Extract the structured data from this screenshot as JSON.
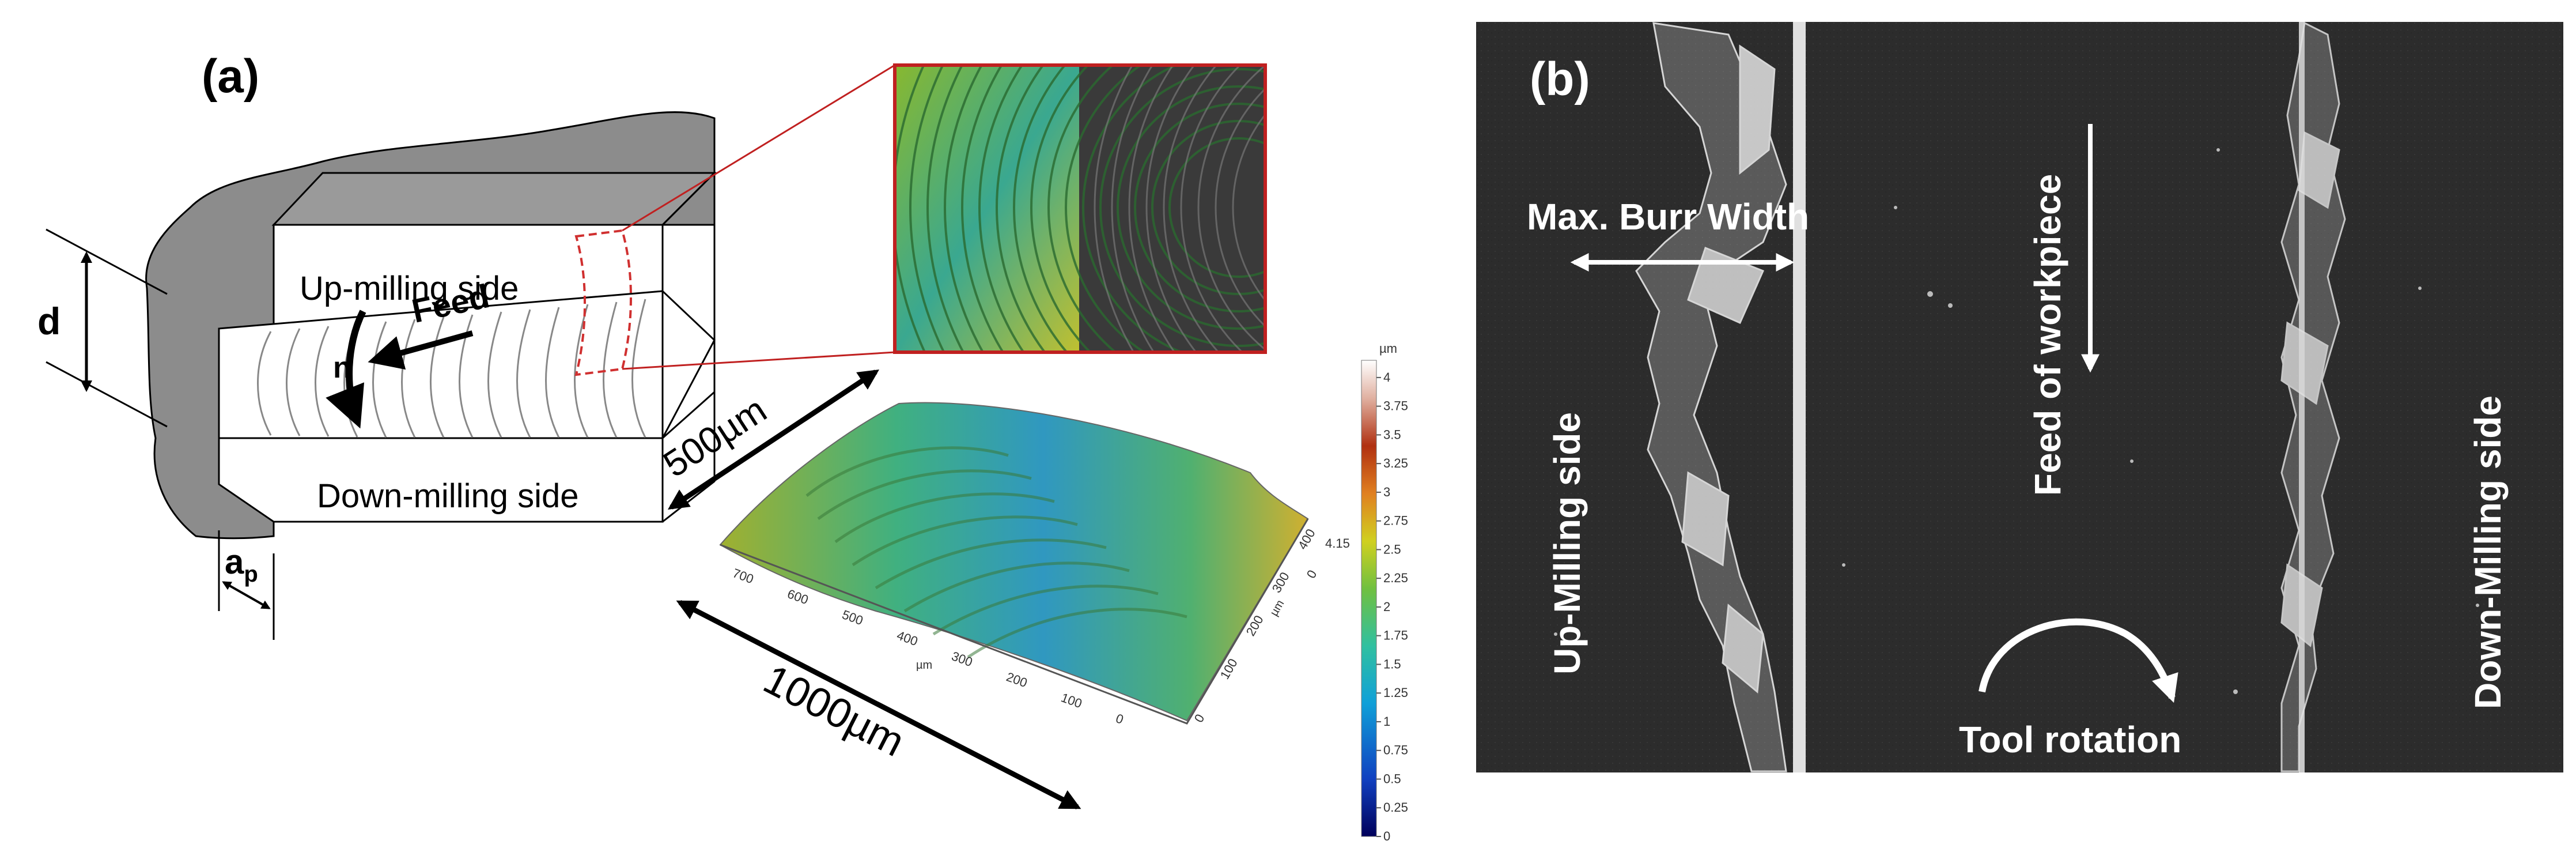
{
  "panel_a": {
    "label": "(a)",
    "up_milling_side": "Up-milling side",
    "down_milling_side": "Down-milling side",
    "feed": "Feed",
    "n": "n",
    "d": "d",
    "ap_main": "a",
    "ap_sub": "p",
    "dim_500": "500µm",
    "dim_1000": "1000µm",
    "plot_3d": {
      "x_ticks": [
        "700",
        "600",
        "500",
        "400",
        "300",
        "200",
        "100",
        "0"
      ],
      "y_ticks": [
        "0",
        "100",
        "200",
        "300",
        "400"
      ],
      "x_unit": "µm",
      "y_unit": "µm",
      "z_ticks": [
        "0",
        "4.15"
      ]
    },
    "colorbar": {
      "unit": "µm",
      "ticks": [
        "4",
        "3.75",
        "3.5",
        "3.25",
        "3",
        "2.75",
        "2.5",
        "2.25",
        "2",
        "1.75",
        "1.5",
        "1.25",
        "1",
        "0.75",
        "0.5",
        "0.25",
        "0"
      ],
      "min": 0,
      "max": 4.15,
      "colors": [
        "#00005a",
        "#1040c0",
        "#10a0d8",
        "#30c0a0",
        "#70c040",
        "#d0d020",
        "#e08020",
        "#b03010",
        "#ffffff"
      ]
    }
  },
  "panel_b": {
    "label": "(b)",
    "max_burr_width": "Max. Burr Width",
    "feed_of_workpiece": "Feed of workpiece",
    "up_milling_side": "Up-Milling side",
    "down_milling_side": "Down-Milling side",
    "tool_rotation": "Tool rotation"
  }
}
